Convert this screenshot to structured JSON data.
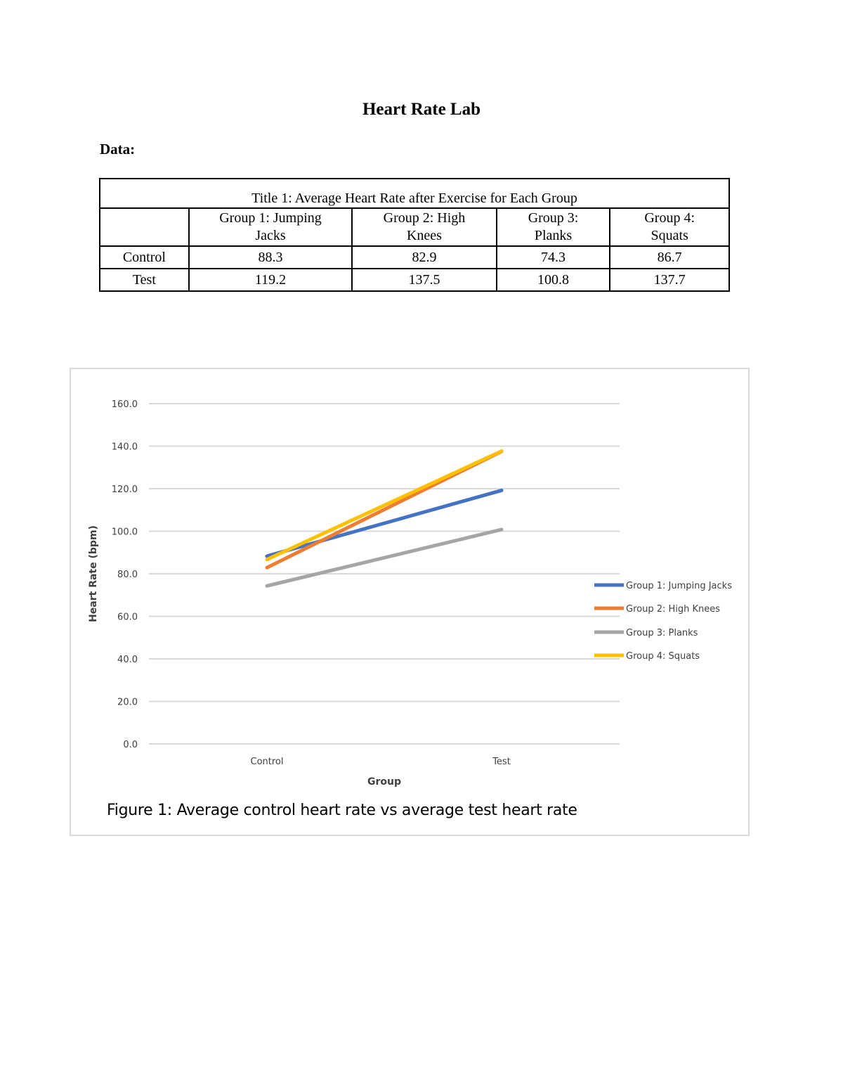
{
  "document": {
    "title": "Heart Rate Lab",
    "section_label": "Data:"
  },
  "table": {
    "title": "Title 1:  Average Heart Rate after Exercise for Each Group",
    "headers": [
      "",
      "Group 1: Jumping Jacks",
      "Group 2: High Knees",
      "Group 3: Planks",
      "Group 4: Squats"
    ],
    "header_lines": [
      [
        "",
        ""
      ],
      [
        "Group 1: Jumping",
        "Jacks"
      ],
      [
        "Group 2: High",
        "Knees"
      ],
      [
        "Group 3:",
        "Planks"
      ],
      [
        "Group 4:",
        "Squats"
      ]
    ],
    "rows": [
      {
        "label": "Control",
        "values": [
          "88.3",
          "82.9",
          "74.3",
          "86.7"
        ]
      },
      {
        "label": "Test",
        "values": [
          "119.2",
          "137.5",
          "100.8",
          "137.7"
        ]
      }
    ]
  },
  "figure": {
    "caption": "Figure 1: Average control heart rate vs average test heart rate"
  },
  "chart_data": {
    "type": "line",
    "title": "",
    "xlabel": "Group",
    "ylabel": "Heart Rate (bpm)",
    "categories": [
      "Control",
      "Test"
    ],
    "ylim": [
      0,
      160
    ],
    "yticks": [
      "0.0",
      "20.0",
      "40.0",
      "60.0",
      "80.0",
      "100.0",
      "120.0",
      "140.0",
      "160.0"
    ],
    "grid": true,
    "legend_position": "right",
    "series": [
      {
        "name": "Group 1: Jumping Jacks",
        "values": [
          88.3,
          119.2
        ],
        "color": "#4472c4"
      },
      {
        "name": "Group 2: High Knees",
        "values": [
          82.9,
          137.5
        ],
        "color": "#ed7d31"
      },
      {
        "name": "Group 3: Planks",
        "values": [
          74.3,
          100.8
        ],
        "color": "#a5a5a5"
      },
      {
        "name": "Group 4: Squats",
        "values": [
          86.7,
          137.7
        ],
        "color": "#ffc000"
      }
    ]
  }
}
